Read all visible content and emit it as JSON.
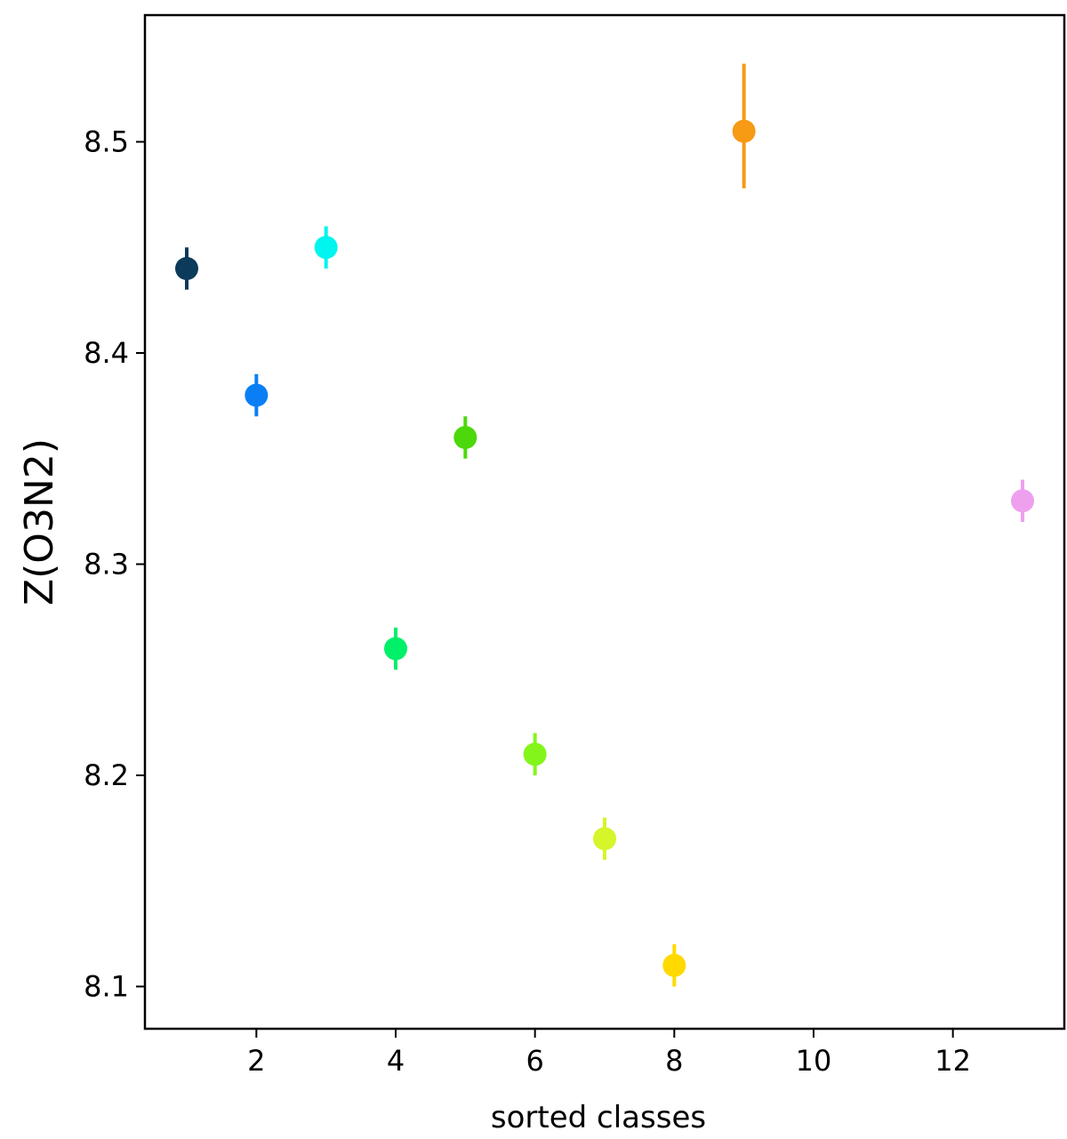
{
  "chart_data": {
    "type": "scatter",
    "title": "",
    "xlabel": "sorted classes",
    "ylabel": "Z(O3N2)",
    "xlim": [
      0.4,
      13.6
    ],
    "ylim": [
      8.08,
      8.56
    ],
    "xticks": [
      2,
      4,
      6,
      8,
      10,
      12
    ],
    "xtick_labels": [
      "2",
      "4",
      "6",
      "8",
      "10",
      "12"
    ],
    "yticks": [
      8.1,
      8.2,
      8.3,
      8.4,
      8.5
    ],
    "ytick_labels": [
      "8.1",
      "8.2",
      "8.3",
      "8.4",
      "8.5"
    ],
    "grid": false,
    "legend": null,
    "points": [
      {
        "x": 1,
        "y": 8.44,
        "err": 0.01,
        "color": "#0b3a5a"
      },
      {
        "x": 2,
        "y": 8.38,
        "err": 0.01,
        "color": "#0a7ff5"
      },
      {
        "x": 3,
        "y": 8.45,
        "err": 0.01,
        "color": "#00f5f0"
      },
      {
        "x": 4,
        "y": 8.26,
        "err": 0.01,
        "color": "#00f06a"
      },
      {
        "x": 5,
        "y": 8.36,
        "err": 0.01,
        "color": "#4cd80a"
      },
      {
        "x": 6,
        "y": 8.21,
        "err": 0.01,
        "color": "#84f51a"
      },
      {
        "x": 7,
        "y": 8.17,
        "err": 0.01,
        "color": "#d6f52a"
      },
      {
        "x": 8,
        "y": 8.11,
        "err": 0.01,
        "color": "#ffd900"
      },
      {
        "x": 9,
        "y": 8.505,
        "err_up": 0.032,
        "err_down": 0.027,
        "color": "#f79a14"
      },
      {
        "x": 13,
        "y": 8.33,
        "err": 0.01,
        "color": "#eea0ef"
      }
    ]
  }
}
